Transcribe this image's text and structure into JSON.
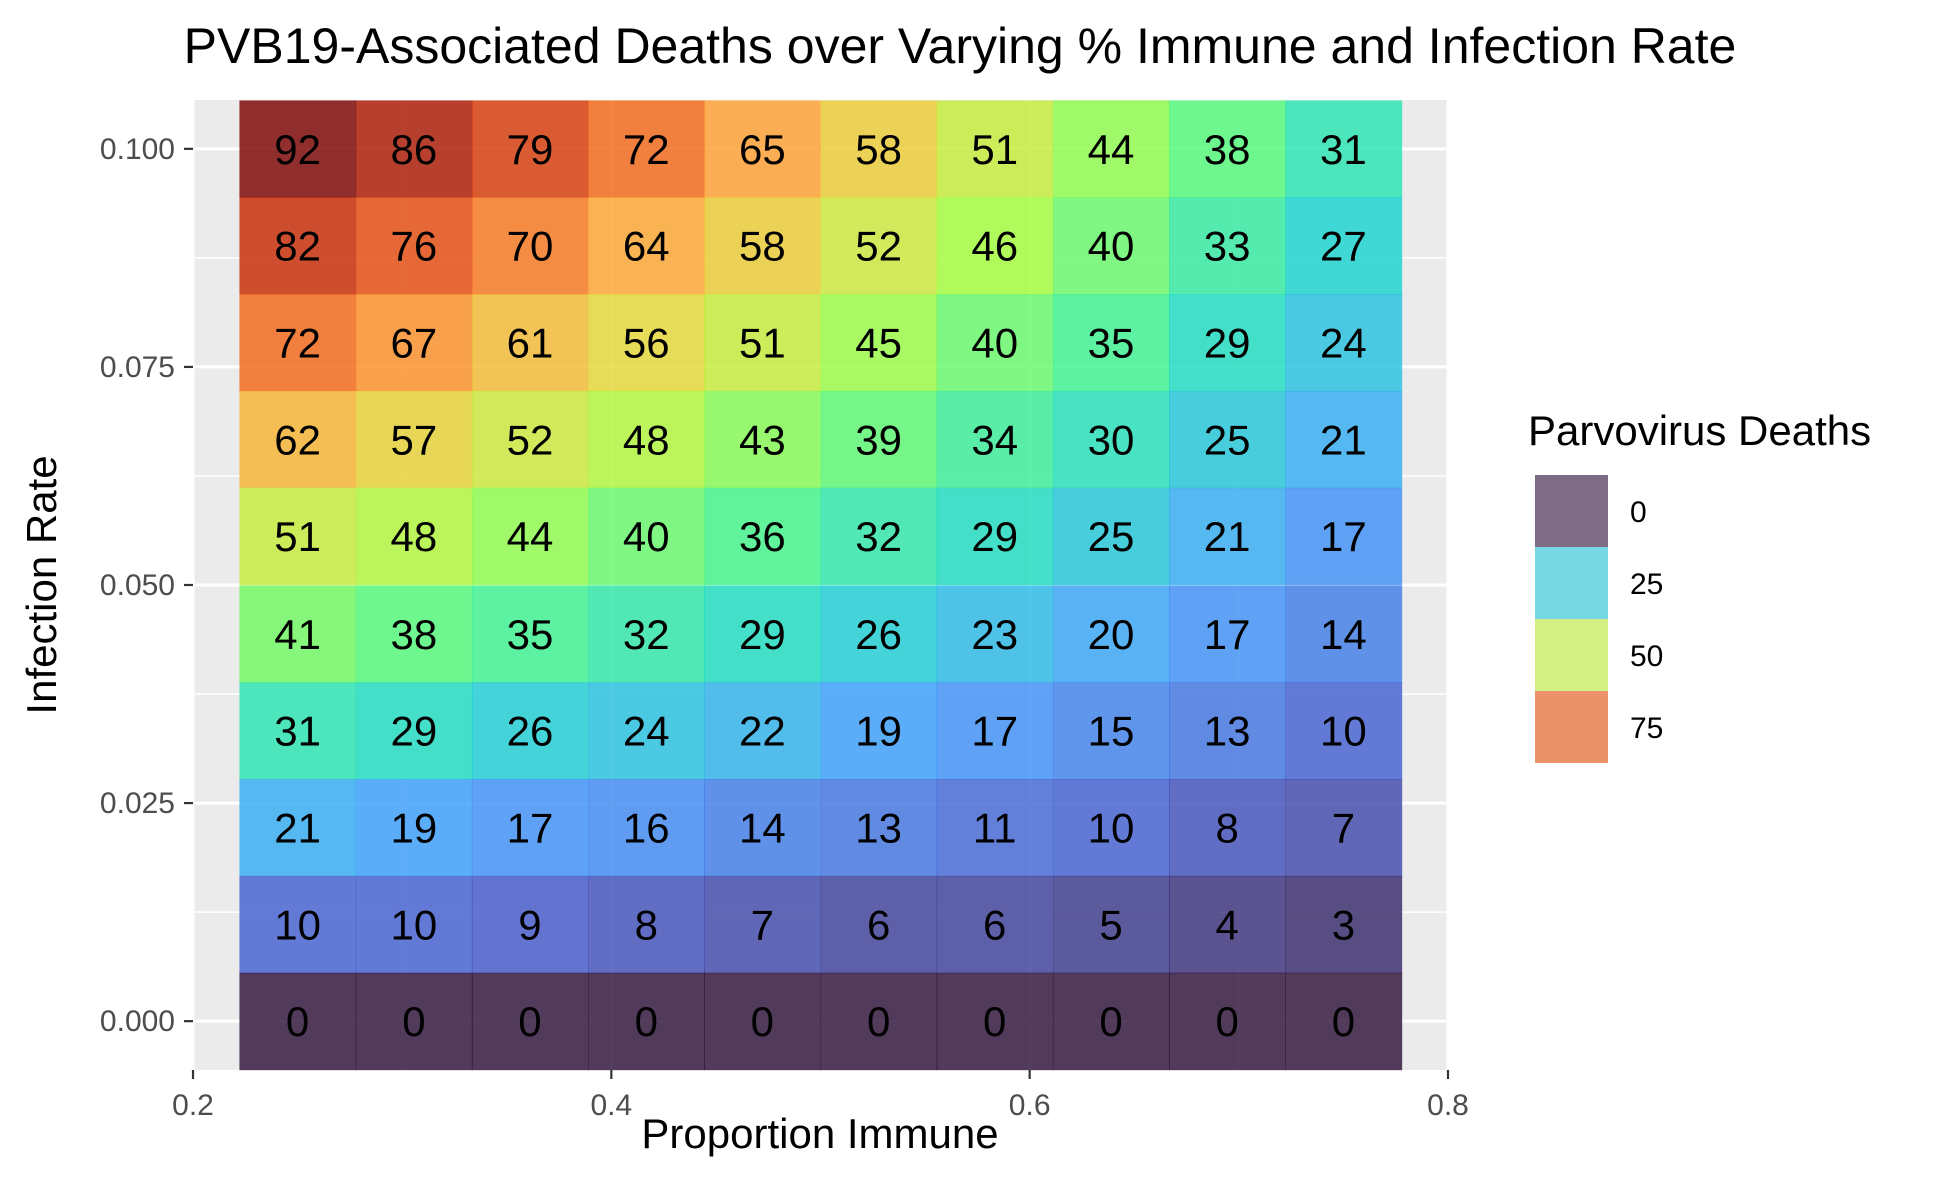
{
  "chart_data": {
    "type": "heatmap",
    "title": "PVB19-Associated Deaths over Varying % Immune and Infection Rate",
    "xlabel": "Proportion Immune",
    "ylabel": "Infection Rate",
    "x": [
      0.25,
      0.3056,
      0.3611,
      0.4167,
      0.4722,
      0.5278,
      0.5833,
      0.6389,
      0.6944,
      0.75
    ],
    "y": [
      0.1,
      0.0889,
      0.0778,
      0.0667,
      0.0556,
      0.0444,
      0.0333,
      0.0222,
      0.0111,
      0.0
    ],
    "values": [
      [
        92,
        86,
        79,
        72,
        65,
        58,
        51,
        44,
        38,
        31
      ],
      [
        82,
        76,
        70,
        64,
        58,
        52,
        46,
        40,
        33,
        27
      ],
      [
        72,
        67,
        61,
        56,
        51,
        45,
        40,
        35,
        29,
        24
      ],
      [
        62,
        57,
        52,
        48,
        43,
        39,
        34,
        30,
        25,
        21
      ],
      [
        51,
        48,
        44,
        40,
        36,
        32,
        29,
        25,
        21,
        17
      ],
      [
        41,
        38,
        35,
        32,
        29,
        26,
        23,
        20,
        17,
        14
      ],
      [
        31,
        29,
        26,
        24,
        22,
        19,
        17,
        15,
        13,
        10
      ],
      [
        21,
        19,
        17,
        16,
        14,
        13,
        11,
        10,
        8,
        7
      ],
      [
        10,
        10,
        9,
        8,
        7,
        6,
        6,
        5,
        4,
        3
      ],
      [
        0,
        0,
        0,
        0,
        0,
        0,
        0,
        0,
        0,
        0
      ]
    ],
    "xlim": [
      0.2,
      0.8
    ],
    "ylim": [
      -0.0056,
      0.1056
    ],
    "x_ticks": [
      "0.2",
      "0.4",
      "0.6",
      "0.8"
    ],
    "y_ticks": [
      "0.000",
      "0.025",
      "0.050",
      "0.075",
      "0.100"
    ],
    "grid": true,
    "background_color": "#ebebeb",
    "colormap": "turbo",
    "color_range": [
      0,
      92
    ],
    "legend": {
      "title": "Parvovirus Deaths",
      "placement": "right",
      "entries": [
        "0",
        "25",
        "50",
        "75"
      ]
    }
  }
}
